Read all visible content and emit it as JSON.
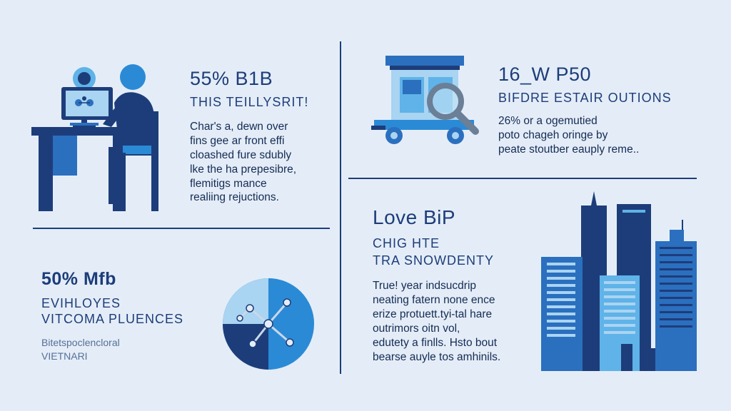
{
  "colors": {
    "background": "#e4edf7",
    "navy": "#1d3d7a",
    "blue": "#2b6fbf",
    "light_blue": "#5fb3e8",
    "pale_blue": "#a9d4f2"
  },
  "section_top_left": {
    "headline": "55% B1B",
    "subheadline": "THIS TEILLYSRIT!",
    "body_lines": [
      "Char's a, dewn over",
      "fins gee ar front effi",
      "cloashed fure sdubly",
      "lke the ha prepesibre,",
      "flemitigs mance",
      "realiing rejuctions."
    ],
    "icon": "person-at-computer-icon"
  },
  "section_top_right": {
    "headline": "16_W P50",
    "subheadline": "BIFDRE ESTAIR OUTIONS",
    "body_lines": [
      "26% or a ogemutied",
      "poto chageh oringe by",
      "peate stoutber eauply reme.."
    ],
    "icon": "truck-magnifier-icon"
  },
  "section_bottom_left": {
    "headline": "50% Mfb",
    "subheadline_lines": [
      "EVIHLOYES",
      "VITCOMA PLUENCES"
    ],
    "small_lines": [
      "Bitetspoclencloral",
      "VIETNARI"
    ],
    "icon": "pie-chart-network-icon"
  },
  "section_bottom_right": {
    "headline": "Love BiP",
    "subheadline_lines": [
      "CHIG HTE",
      "TRA SNOWDENTY"
    ],
    "body_lines": [
      "True! year indsucdrip",
      "neating fatern none ence",
      "erize protuett.tyi-tal hare",
      "outrimors oitn vol,",
      "edutety a finlls. Hsto bout",
      "bearse auyle tos amhinils."
    ],
    "icon": "city-skyline-icon"
  }
}
